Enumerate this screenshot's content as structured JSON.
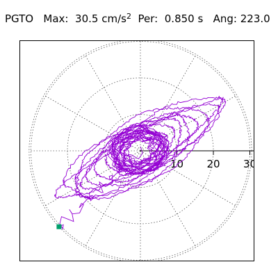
{
  "header": {
    "station": "PGTO",
    "max_label": "Max:",
    "max_value": "30.5",
    "max_unit": "cm/s",
    "max_unit_power": "2",
    "per_label": "Per:",
    "per_value": "0.850 s",
    "ang_label": "Ang:",
    "ang_value": "223.0"
  },
  "chart_data": {
    "type": "polar-orbit",
    "station": "PGTO",
    "max": 30.5,
    "max_unit": "cm/s^2",
    "period_s": 0.85,
    "angle_deg": 223.0,
    "radial_ticks": [
      "10",
      "20",
      "30"
    ],
    "radial_tick_values": [
      10,
      20,
      30
    ],
    "r_max": 30.5,
    "radial_grid": [
      10,
      20,
      30
    ],
    "spoke_step_deg": 30,
    "grid": true,
    "trace_color": "#9400d3",
    "marker_color": "#009f6b",
    "peak_point": {
      "x": -22.3,
      "y": -20.8
    },
    "orbit_axis_deg": 30,
    "orbit_loops": [
      {
        "a": 25.5,
        "b": 4.2
      },
      {
        "a": 24.0,
        "b": 7.5
      },
      {
        "a": 22.5,
        "b": 6.0
      },
      {
        "a": 20.0,
        "b": 8.5
      },
      {
        "a": 18.0,
        "b": 5.0
      },
      {
        "a": 15.5,
        "b": 7.0
      },
      {
        "a": 13.0,
        "b": 6.5
      },
      {
        "a": 10.0,
        "b": 5.5
      },
      {
        "a": 7.5,
        "b": 4.0
      },
      {
        "a": 5.5,
        "b": 3.0
      }
    ]
  }
}
